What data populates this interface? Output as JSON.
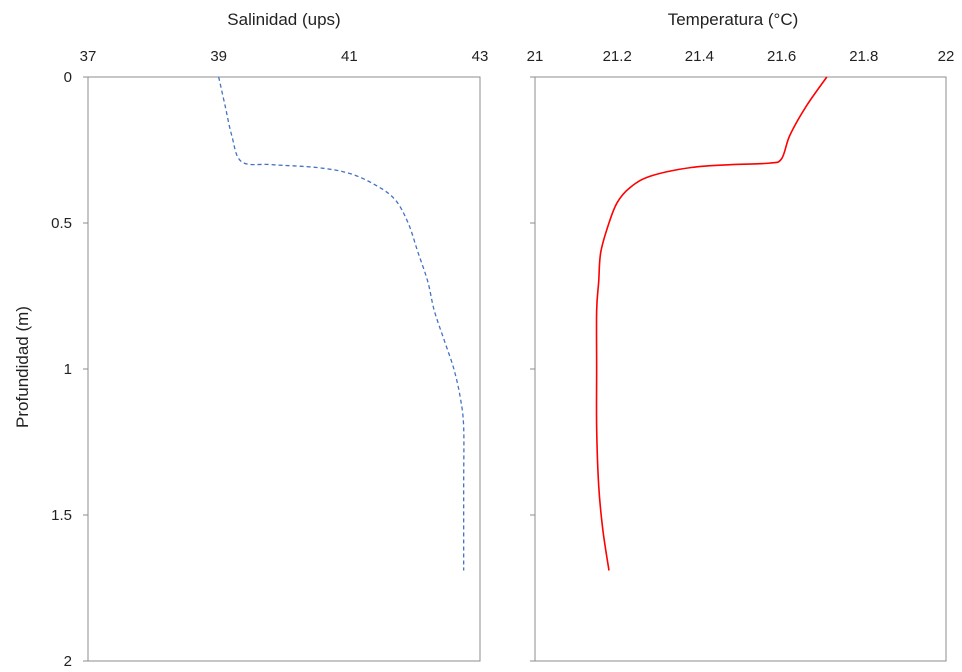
{
  "y_axis_label": "Profundidad (m)",
  "chart_data": [
    {
      "type": "line",
      "title": "Salinidad (ups)",
      "xlabel": "Salinidad (ups)",
      "ylabel": "Profundidad (m)",
      "x_axis_position": "top",
      "y_inverted": true,
      "xlim": [
        37,
        43
      ],
      "ylim": [
        0,
        2
      ],
      "x_ticks": [
        "37",
        "39",
        "41",
        "43"
      ],
      "y_ticks": [
        "0",
        "0.5",
        "1",
        "1.5",
        "2"
      ],
      "grid": false,
      "color": "#4472c4",
      "line_style": "dashed",
      "series": [
        {
          "x": [
            39.0,
            39.1,
            39.2,
            39.35,
            39.8,
            40.5,
            41.0,
            41.4,
            41.7,
            41.9,
            42.05,
            42.2,
            42.3,
            42.45,
            42.6,
            42.7,
            42.75,
            42.75,
            42.75
          ],
          "y": [
            0.0,
            0.1,
            0.2,
            0.29,
            0.3,
            0.31,
            0.33,
            0.37,
            0.42,
            0.5,
            0.6,
            0.7,
            0.8,
            0.9,
            1.0,
            1.1,
            1.2,
            1.4,
            1.69
          ]
        }
      ]
    },
    {
      "type": "line",
      "title": "Temperatura (°C)",
      "xlabel": "Temperatura (°C)",
      "x_axis_position": "top",
      "y_inverted": true,
      "xlim": [
        21,
        22
      ],
      "ylim": [
        0,
        2
      ],
      "x_ticks": [
        "21",
        "21.2",
        "21.4",
        "21.6",
        "21.8",
        "22"
      ],
      "grid": false,
      "color": "#ff0000",
      "line_style": "solid",
      "series": [
        {
          "x": [
            21.71,
            21.66,
            21.62,
            21.6,
            21.57,
            21.48,
            21.38,
            21.28,
            21.23,
            21.2,
            21.18,
            21.16,
            21.155,
            21.15,
            21.15,
            21.15,
            21.155,
            21.165,
            21.18
          ],
          "y": [
            0.0,
            0.1,
            0.2,
            0.28,
            0.295,
            0.3,
            0.31,
            0.34,
            0.38,
            0.43,
            0.5,
            0.6,
            0.7,
            0.8,
            1.0,
            1.2,
            1.4,
            1.55,
            1.69
          ]
        }
      ]
    }
  ]
}
